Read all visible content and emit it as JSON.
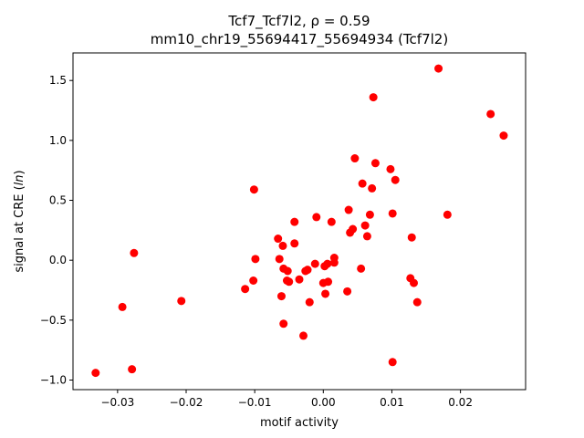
{
  "chart_data": {
    "type": "scatter",
    "title_line1": "Tcf7_Tcf7l2, ρ = 0.59",
    "title_line2": "mm10_chr19_55694417_55694934 (Tcf7l2)",
    "xlabel": "motif activity",
    "ylabel_prefix": "signal at CRE (",
    "ylabel_italic": "ln",
    "ylabel_suffix": ")",
    "xlim": [
      -0.0365,
      0.0295
    ],
    "ylim": [
      -1.08,
      1.73
    ],
    "xticks": [
      {
        "value": -0.03,
        "label": "−0.03"
      },
      {
        "value": -0.02,
        "label": "−0.02"
      },
      {
        "value": -0.01,
        "label": "−0.01"
      },
      {
        "value": 0.0,
        "label": "0.00"
      },
      {
        "value": 0.01,
        "label": "0.01"
      },
      {
        "value": 0.02,
        "label": "0.02"
      }
    ],
    "yticks": [
      {
        "value": -1.0,
        "label": "−1.0"
      },
      {
        "value": -0.5,
        "label": "−0.5"
      },
      {
        "value": 0.0,
        "label": "0.0"
      },
      {
        "value": 0.5,
        "label": "0.5"
      },
      {
        "value": 1.0,
        "label": "1.0"
      },
      {
        "value": 1.5,
        "label": "1.5"
      }
    ],
    "grid": false,
    "marker_color": "#ff0000",
    "points": [
      {
        "x": -0.0332,
        "y": -0.94
      },
      {
        "x": -0.0293,
        "y": -0.39
      },
      {
        "x": -0.0279,
        "y": -0.91
      },
      {
        "x": -0.0276,
        "y": 0.06
      },
      {
        "x": -0.0207,
        "y": -0.34
      },
      {
        "x": -0.0114,
        "y": -0.24
      },
      {
        "x": -0.0101,
        "y": 0.59
      },
      {
        "x": -0.0102,
        "y": -0.17
      },
      {
        "x": -0.0099,
        "y": 0.01
      },
      {
        "x": -0.0066,
        "y": 0.18
      },
      {
        "x": -0.0064,
        "y": 0.01
      },
      {
        "x": -0.0061,
        "y": -0.3
      },
      {
        "x": -0.0059,
        "y": 0.12
      },
      {
        "x": -0.0058,
        "y": -0.07
      },
      {
        "x": -0.0058,
        "y": -0.53
      },
      {
        "x": -0.0053,
        "y": -0.17
      },
      {
        "x": -0.0052,
        "y": -0.09
      },
      {
        "x": -0.005,
        "y": -0.18
      },
      {
        "x": -0.0042,
        "y": 0.32
      },
      {
        "x": -0.0042,
        "y": 0.14
      },
      {
        "x": -0.0035,
        "y": -0.16
      },
      {
        "x": -0.0029,
        "y": -0.63
      },
      {
        "x": -0.0026,
        "y": -0.09
      },
      {
        "x": -0.0023,
        "y": -0.08
      },
      {
        "x": -0.002,
        "y": -0.35
      },
      {
        "x": -0.0012,
        "y": -0.03
      },
      {
        "x": -0.001,
        "y": 0.36
      },
      {
        "x": 0.0,
        "y": -0.19
      },
      {
        "x": 0.0002,
        "y": -0.05
      },
      {
        "x": 0.0003,
        "y": -0.28
      },
      {
        "x": 0.0006,
        "y": -0.03
      },
      {
        "x": 0.0007,
        "y": -0.18
      },
      {
        "x": 0.0012,
        "y": 0.32
      },
      {
        "x": 0.0016,
        "y": -0.02
      },
      {
        "x": 0.0016,
        "y": 0.02
      },
      {
        "x": 0.0035,
        "y": -0.26
      },
      {
        "x": 0.0037,
        "y": 0.42
      },
      {
        "x": 0.0039,
        "y": 0.23
      },
      {
        "x": 0.0043,
        "y": 0.26
      },
      {
        "x": 0.0046,
        "y": 0.85
      },
      {
        "x": 0.0055,
        "y": -0.07
      },
      {
        "x": 0.0057,
        "y": 0.64
      },
      {
        "x": 0.0061,
        "y": 0.29
      },
      {
        "x": 0.0064,
        "y": 0.2
      },
      {
        "x": 0.0068,
        "y": 0.38
      },
      {
        "x": 0.0071,
        "y": 0.6
      },
      {
        "x": 0.0073,
        "y": 1.36
      },
      {
        "x": 0.0076,
        "y": 0.81
      },
      {
        "x": 0.0098,
        "y": 0.76
      },
      {
        "x": 0.0101,
        "y": 0.39
      },
      {
        "x": 0.0101,
        "y": -0.85
      },
      {
        "x": 0.0105,
        "y": 0.67
      },
      {
        "x": 0.0127,
        "y": -0.15
      },
      {
        "x": 0.0129,
        "y": 0.19
      },
      {
        "x": 0.0132,
        "y": -0.19
      },
      {
        "x": 0.0137,
        "y": -0.35
      },
      {
        "x": 0.0168,
        "y": 1.6
      },
      {
        "x": 0.0181,
        "y": 0.38
      },
      {
        "x": 0.0244,
        "y": 1.22
      },
      {
        "x": 0.0263,
        "y": 1.04
      }
    ]
  }
}
